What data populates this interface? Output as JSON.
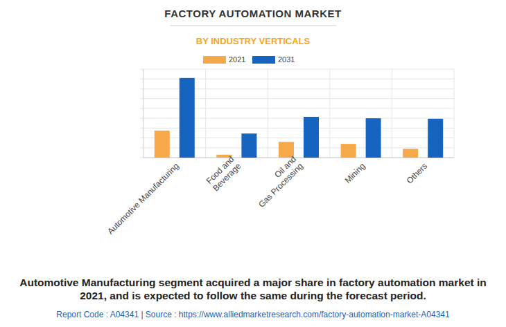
{
  "chart_data": {
    "type": "bar",
    "title": "FACTORY AUTOMATION MARKET",
    "subtitle": "BY INDUSTRY VERTICALS",
    "categories": [
      "Automotive Manufacturing",
      "Food and\nBeverage",
      "Oil and\nGas Processing",
      "Mining",
      "Others"
    ],
    "series": [
      {
        "name": "2021",
        "color": "#f5a94a",
        "values": [
          2.75,
          0.3,
          1.6,
          1.4,
          0.9
        ]
      },
      {
        "name": "2031",
        "color": "#1565c0",
        "values": [
          8.1,
          2.45,
          4.15,
          4.0,
          3.95
        ]
      }
    ],
    "ylim": [
      0,
      9
    ],
    "yticks": [
      0,
      1,
      2,
      3,
      4,
      5,
      6,
      7,
      8,
      9
    ],
    "grid": true,
    "legend": "top",
    "tick_labels": "x",
    "annotations": [
      "Automotive Manufacturing segment acquired a major share in factory automation market in 2021, and is expected to follow the same during the forecast period.",
      "Report Code : A04341  |  Source : https://www.alliedmarketresearch.com/factory-automation-market-A04341"
    ]
  }
}
